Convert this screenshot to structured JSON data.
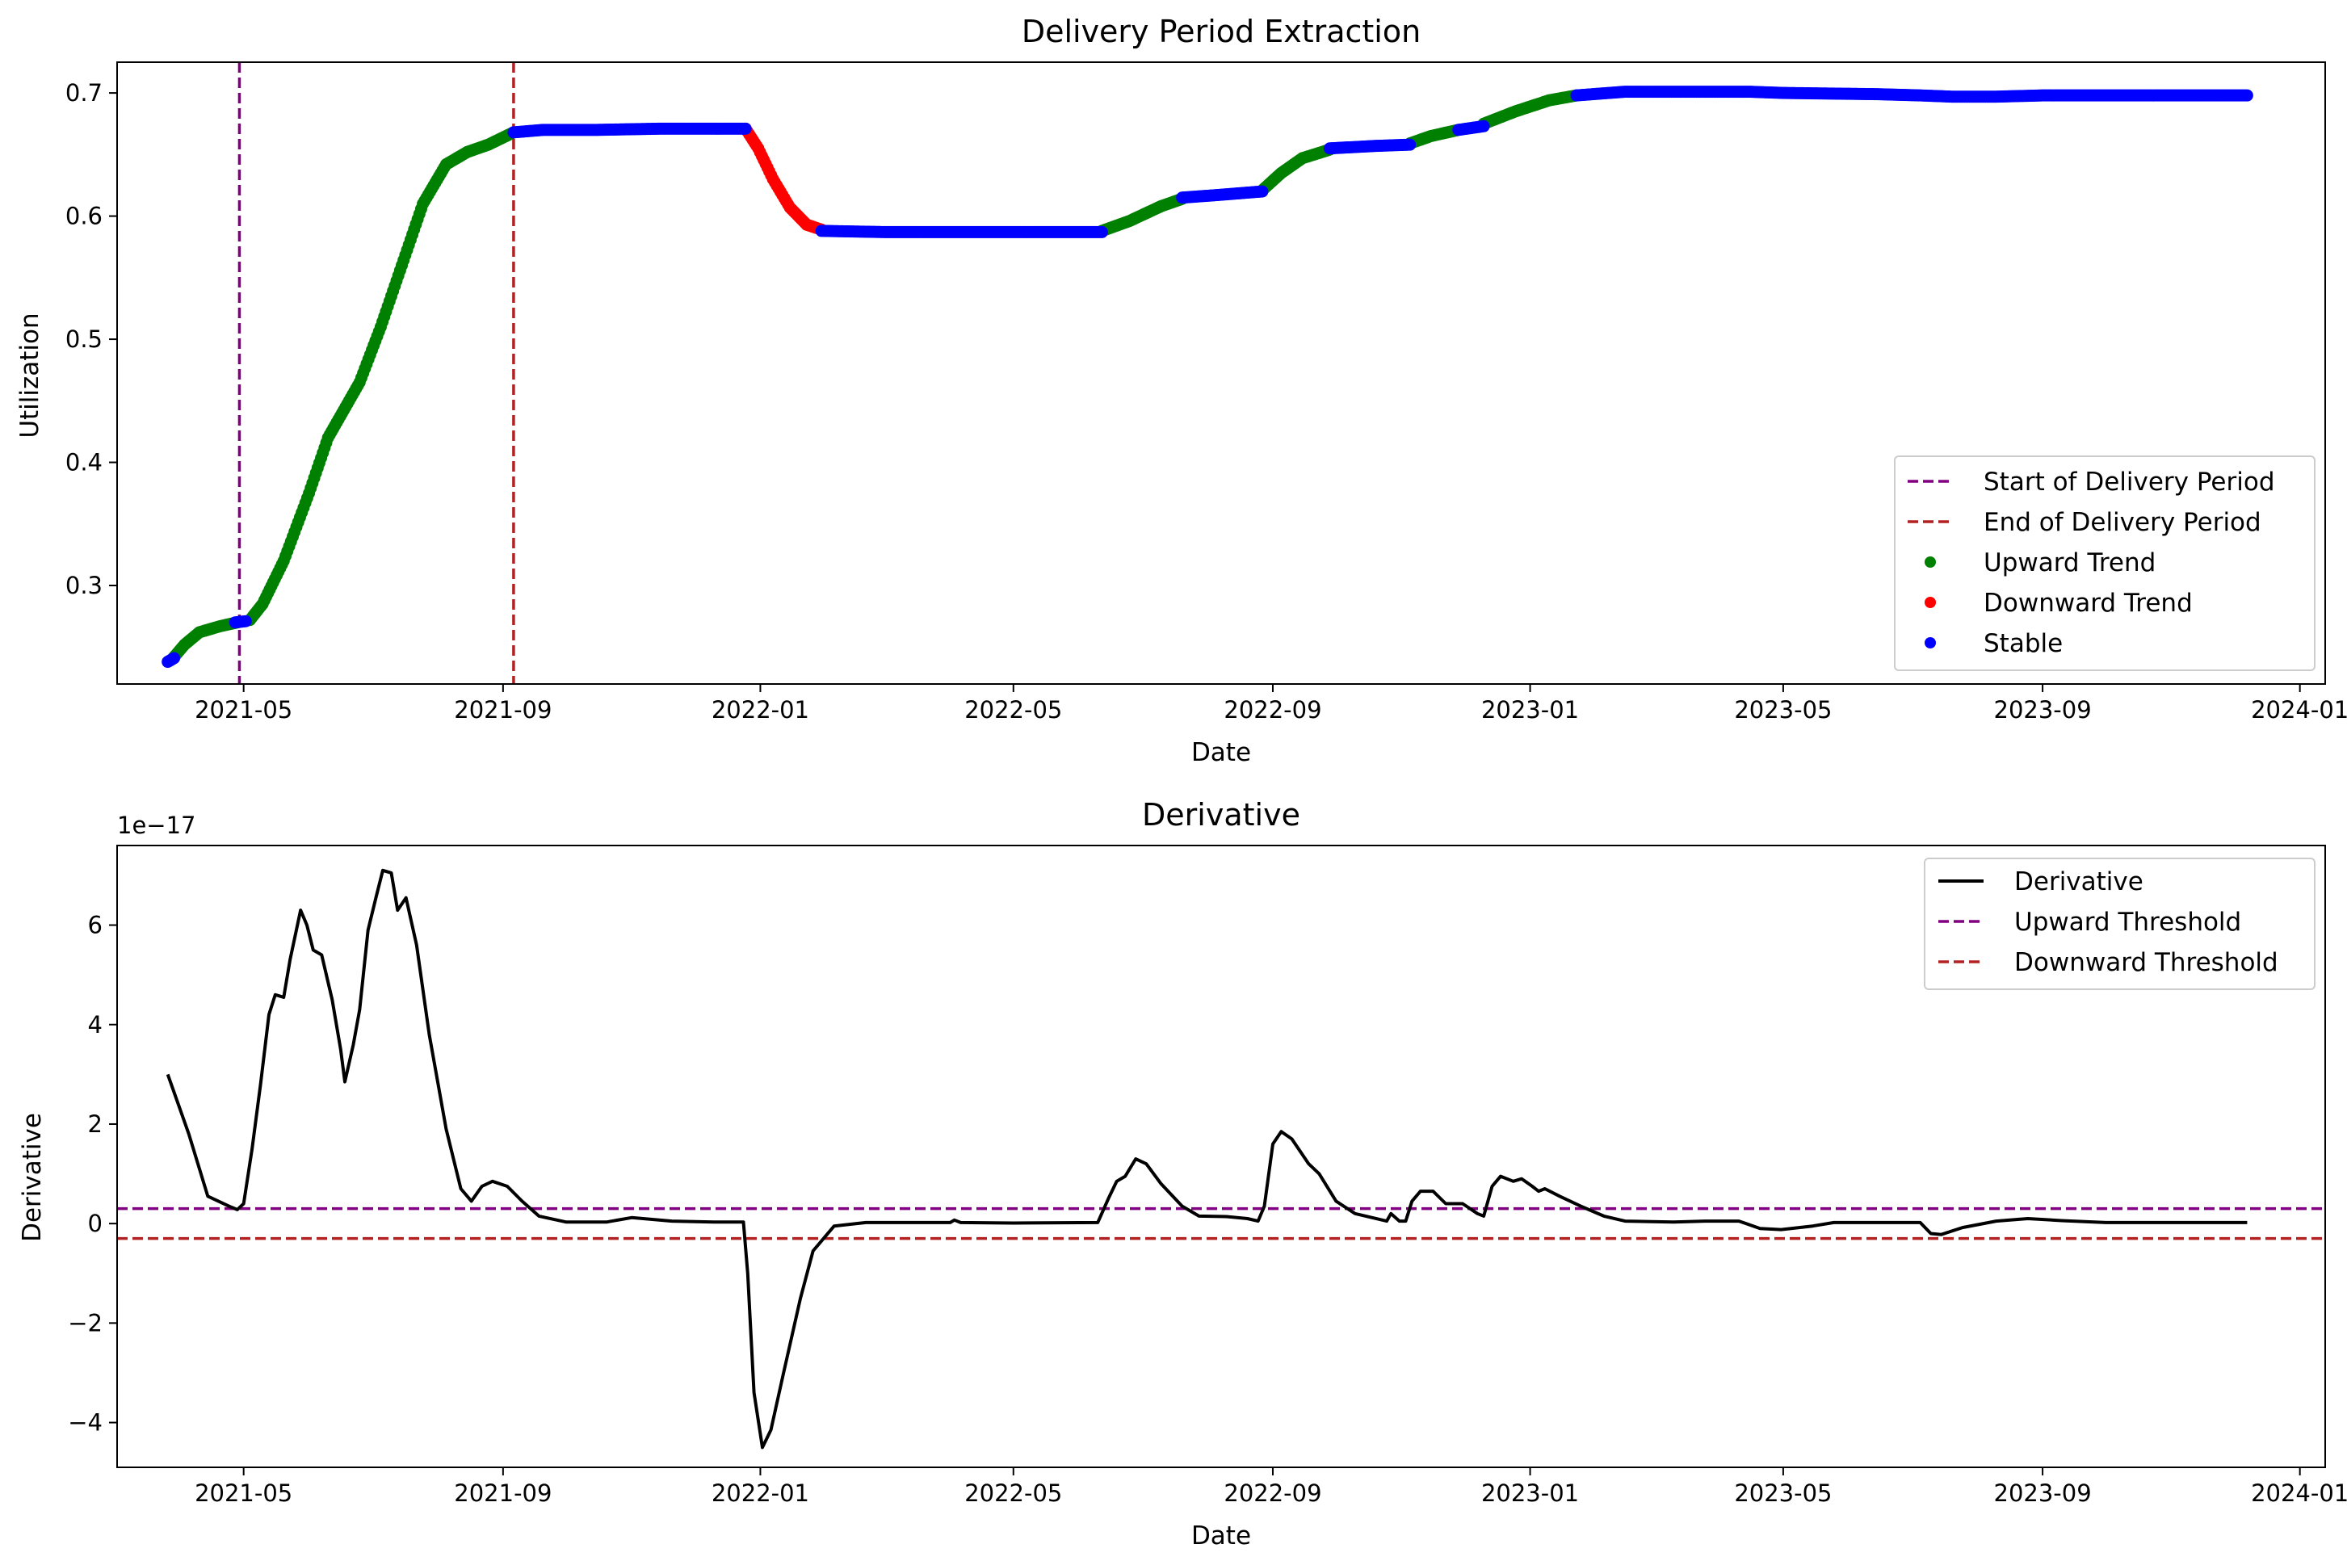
{
  "colors": {
    "upward": "#008000",
    "downward": "#ff0000",
    "stable": "#0000ff",
    "start_line": "#800080",
    "end_line": "#b22222",
    "derivative": "#000000",
    "upward_threshold": "#800080",
    "downward_threshold": "#b22222"
  },
  "chart_data": [
    {
      "type": "scatter",
      "title": "Delivery Period Extraction",
      "xlabel": "Date",
      "ylabel": "Utilization",
      "x_range": [
        "2021-03-02",
        "2024-01-13"
      ],
      "ylim": [
        0.22,
        0.725
      ],
      "x_ticks": [
        "2021-05",
        "2021-09",
        "2022-01",
        "2022-05",
        "2022-09",
        "2023-01",
        "2023-05",
        "2023-09",
        "2024-01"
      ],
      "y_ticks": [
        0.3,
        0.4,
        0.5,
        0.6,
        0.7
      ],
      "y_tick_labels": [
        "0.3",
        "0.4",
        "0.5",
        "0.6",
        "0.7"
      ],
      "grid": false,
      "legend_position": "lower right",
      "vlines": [
        {
          "name": "Start of Delivery Period",
          "x": "2021-04-29",
          "style": "dashed",
          "color": "#800080"
        },
        {
          "name": "End of Delivery Period",
          "x": "2021-09-06",
          "style": "dashed",
          "color": "#b22222"
        }
      ],
      "series": [
        {
          "name": "Upward Trend",
          "color": "#008000",
          "segments": [
            [
              [
                "2021-03-28",
                0.24
              ],
              [
                "2021-04-03",
                0.252
              ],
              [
                "2021-04-10",
                0.262
              ],
              [
                "2021-04-20",
                0.267
              ],
              [
                "2021-04-28",
                0.27
              ]
            ],
            [
              [
                "2021-05-04",
                0.272
              ],
              [
                "2021-05-10",
                0.285
              ],
              [
                "2021-05-20",
                0.32
              ],
              [
                "2021-06-01",
                0.375
              ],
              [
                "2021-06-10",
                0.42
              ],
              [
                "2021-06-20",
                0.45
              ],
              [
                "2021-06-25",
                0.465
              ],
              [
                "2021-07-05",
                0.51
              ],
              [
                "2021-07-15",
                0.56
              ],
              [
                "2021-07-25",
                0.61
              ],
              [
                "2021-08-05",
                0.642
              ],
              [
                "2021-08-15",
                0.652
              ],
              [
                "2021-08-25",
                0.658
              ],
              [
                "2021-09-06",
                0.668
              ]
            ],
            [
              [
                "2022-06-12",
                0.588
              ],
              [
                "2022-06-25",
                0.596
              ],
              [
                "2022-07-10",
                0.608
              ],
              [
                "2022-07-20",
                0.614
              ]
            ],
            [
              [
                "2022-08-27",
                0.621
              ],
              [
                "2022-09-05",
                0.635
              ],
              [
                "2022-09-15",
                0.647
              ],
              [
                "2022-09-28",
                0.654
              ]
            ],
            [
              [
                "2022-11-05",
                0.659
              ],
              [
                "2022-11-15",
                0.665
              ],
              [
                "2022-11-28",
                0.67
              ]
            ],
            [
              [
                "2022-12-10",
                0.675
              ],
              [
                "2022-12-25",
                0.685
              ],
              [
                "2023-01-10",
                0.694
              ],
              [
                "2023-01-23",
                0.698
              ]
            ]
          ]
        },
        {
          "name": "Downward Trend",
          "color": "#ff0000",
          "segments": [
            [
              [
                "2021-12-25",
                0.671
              ],
              [
                "2021-12-31",
                0.655
              ],
              [
                "2022-01-07",
                0.63
              ],
              [
                "2022-01-15",
                0.607
              ],
              [
                "2022-01-23",
                0.593
              ],
              [
                "2022-01-30",
                0.589
              ]
            ]
          ]
        },
        {
          "name": "Stable",
          "color": "#0000ff",
          "segments": [
            [
              [
                "2021-03-26",
                0.238
              ],
              [
                "2021-03-29",
                0.241
              ]
            ],
            [
              [
                "2021-04-27",
                0.27
              ],
              [
                "2021-05-02",
                0.271
              ]
            ],
            [
              [
                "2021-09-06",
                0.668
              ],
              [
                "2021-09-20",
                0.67
              ],
              [
                "2021-10-15",
                0.67
              ],
              [
                "2021-11-15",
                0.671
              ],
              [
                "2021-12-25",
                0.671
              ]
            ],
            [
              [
                "2022-01-30",
                0.588
              ],
              [
                "2022-03-01",
                0.587
              ],
              [
                "2022-04-15",
                0.587
              ],
              [
                "2022-06-12",
                0.587
              ]
            ],
            [
              [
                "2022-07-20",
                0.615
              ],
              [
                "2022-08-05",
                0.617
              ],
              [
                "2022-08-27",
                0.62
              ]
            ],
            [
              [
                "2022-09-28",
                0.655
              ],
              [
                "2022-10-20",
                0.657
              ],
              [
                "2022-11-05",
                0.658
              ]
            ],
            [
              [
                "2022-11-28",
                0.67
              ],
              [
                "2022-12-10",
                0.673
              ]
            ],
            [
              [
                "2023-01-23",
                0.698
              ],
              [
                "2023-02-15",
                0.701
              ],
              [
                "2023-03-15",
                0.701
              ],
              [
                "2023-04-15",
                0.701
              ],
              [
                "2023-05-01",
                0.7
              ],
              [
                "2023-06-15",
                0.699
              ],
              [
                "2023-07-05",
                0.698
              ],
              [
                "2023-07-20",
                0.697
              ],
              [
                "2023-08-10",
                0.697
              ],
              [
                "2023-09-01",
                0.698
              ],
              [
                "2023-10-15",
                0.698
              ],
              [
                "2023-12-01",
                0.698
              ],
              [
                "2023-12-07",
                0.698
              ]
            ]
          ]
        }
      ],
      "legend": [
        "Start of Delivery Period",
        "End of Delivery Period",
        "Upward Trend",
        "Downward Trend",
        "Stable"
      ]
    },
    {
      "type": "line",
      "title": "Derivative",
      "xlabel": "Date",
      "ylabel": "Derivative",
      "y_offset_label": "1e−17",
      "x_range": [
        "2021-03-02",
        "2024-01-13"
      ],
      "ylim": [
        -4.9,
        7.6
      ],
      "x_ticks": [
        "2021-05",
        "2021-09",
        "2022-01",
        "2022-05",
        "2022-09",
        "2023-01",
        "2023-05",
        "2023-09",
        "2024-01"
      ],
      "y_ticks": [
        -4,
        -2,
        0,
        2,
        4,
        6
      ],
      "y_tick_labels": [
        "−4",
        "−2",
        "0",
        "2",
        "4",
        "6"
      ],
      "grid": false,
      "legend_position": "upper right",
      "hlines": [
        {
          "name": "Upward Threshold",
          "y": 0.3,
          "style": "dashed",
          "color": "#800080"
        },
        {
          "name": "Downward Threshold",
          "y": -0.3,
          "style": "dashed",
          "color": "#b22222"
        }
      ],
      "series": [
        {
          "name": "Derivative",
          "color": "#000000",
          "points": [
            [
              "2021-03-26",
              3.0
            ],
            [
              "2021-04-05",
              1.8
            ],
            [
              "2021-04-14",
              0.55
            ],
            [
              "2021-04-24",
              0.35
            ],
            [
              "2021-04-28",
              0.28
            ],
            [
              "2021-05-01",
              0.4
            ],
            [
              "2021-05-05",
              1.5
            ],
            [
              "2021-05-09",
              2.8
            ],
            [
              "2021-05-13",
              4.2
            ],
            [
              "2021-05-16",
              4.6
            ],
            [
              "2021-05-20",
              4.55
            ],
            [
              "2021-05-23",
              5.3
            ],
            [
              "2021-05-28",
              6.3
            ],
            [
              "2021-05-31",
              6.0
            ],
            [
              "2021-06-03",
              5.5
            ],
            [
              "2021-06-07",
              5.4
            ],
            [
              "2021-06-12",
              4.5
            ],
            [
              "2021-06-16",
              3.5
            ],
            [
              "2021-06-18",
              2.85
            ],
            [
              "2021-06-22",
              3.6
            ],
            [
              "2021-06-25",
              4.3
            ],
            [
              "2021-06-29",
              5.9
            ],
            [
              "2021-07-03",
              6.6
            ],
            [
              "2021-07-06",
              7.1
            ],
            [
              "2021-07-10",
              7.05
            ],
            [
              "2021-07-13",
              6.3
            ],
            [
              "2021-07-17",
              6.55
            ],
            [
              "2021-07-22",
              5.6
            ],
            [
              "2021-07-28",
              3.8
            ],
            [
              "2021-08-05",
              1.9
            ],
            [
              "2021-08-12",
              0.7
            ],
            [
              "2021-08-17",
              0.45
            ],
            [
              "2021-08-22",
              0.75
            ],
            [
              "2021-08-27",
              0.85
            ],
            [
              "2021-09-03",
              0.75
            ],
            [
              "2021-09-10",
              0.45
            ],
            [
              "2021-09-18",
              0.15
            ],
            [
              "2021-10-01",
              0.03
            ],
            [
              "2021-10-20",
              0.03
            ],
            [
              "2021-11-01",
              0.12
            ],
            [
              "2021-11-20",
              0.05
            ],
            [
              "2021-12-10",
              0.03
            ],
            [
              "2021-12-24",
              0.03
            ],
            [
              "2021-12-26",
              -1.0
            ],
            [
              "2021-12-29",
              -3.4
            ],
            [
              "2022-01-02",
              -4.5
            ],
            [
              "2022-01-06",
              -4.15
            ],
            [
              "2022-01-12",
              -3.0
            ],
            [
              "2022-01-20",
              -1.5
            ],
            [
              "2022-01-26",
              -0.55
            ],
            [
              "2022-02-05",
              -0.05
            ],
            [
              "2022-02-20",
              0.02
            ],
            [
              "2022-04-01",
              0.02
            ],
            [
              "2022-04-03",
              0.07
            ],
            [
              "2022-04-06",
              0.02
            ],
            [
              "2022-05-01",
              0.01
            ],
            [
              "2022-06-10",
              0.02
            ],
            [
              "2022-06-15",
              0.5
            ],
            [
              "2022-06-19",
              0.85
            ],
            [
              "2022-06-23",
              0.95
            ],
            [
              "2022-06-28",
              1.3
            ],
            [
              "2022-07-03",
              1.2
            ],
            [
              "2022-07-10",
              0.8
            ],
            [
              "2022-07-20",
              0.35
            ],
            [
              "2022-07-28",
              0.15
            ],
            [
              "2022-08-10",
              0.14
            ],
            [
              "2022-08-20",
              0.1
            ],
            [
              "2022-08-25",
              0.05
            ],
            [
              "2022-08-28",
              0.35
            ],
            [
              "2022-09-01",
              1.6
            ],
            [
              "2022-09-05",
              1.85
            ],
            [
              "2022-09-10",
              1.7
            ],
            [
              "2022-09-18",
              1.2
            ],
            [
              "2022-09-23",
              1.0
            ],
            [
              "2022-10-01",
              0.45
            ],
            [
              "2022-10-10",
              0.2
            ],
            [
              "2022-10-25",
              0.05
            ],
            [
              "2022-10-27",
              0.2
            ],
            [
              "2022-10-31",
              0.05
            ],
            [
              "2022-11-03",
              0.05
            ],
            [
              "2022-11-06",
              0.45
            ],
            [
              "2022-11-10",
              0.65
            ],
            [
              "2022-11-16",
              0.65
            ],
            [
              "2022-11-22",
              0.4
            ],
            [
              "2022-11-30",
              0.4
            ],
            [
              "2022-12-07",
              0.2
            ],
            [
              "2022-12-10",
              0.15
            ],
            [
              "2022-12-14",
              0.75
            ],
            [
              "2022-12-18",
              0.95
            ],
            [
              "2022-12-24",
              0.85
            ],
            [
              "2022-12-28",
              0.9
            ],
            [
              "2023-01-02",
              0.75
            ],
            [
              "2023-01-05",
              0.65
            ],
            [
              "2023-01-08",
              0.7
            ],
            [
              "2023-01-15",
              0.55
            ],
            [
              "2023-01-25",
              0.35
            ],
            [
              "2023-02-05",
              0.15
            ],
            [
              "2023-02-15",
              0.05
            ],
            [
              "2023-03-10",
              0.03
            ],
            [
              "2023-03-25",
              0.05
            ],
            [
              "2023-04-10",
              0.05
            ],
            [
              "2023-04-20",
              -0.1
            ],
            [
              "2023-04-30",
              -0.12
            ],
            [
              "2023-05-15",
              -0.05
            ],
            [
              "2023-05-25",
              0.02
            ],
            [
              "2023-06-20",
              0.02
            ],
            [
              "2023-07-05",
              0.02
            ],
            [
              "2023-07-10",
              -0.2
            ],
            [
              "2023-07-15",
              -0.22
            ],
            [
              "2023-07-25",
              -0.08
            ],
            [
              "2023-08-10",
              0.05
            ],
            [
              "2023-08-25",
              0.1
            ],
            [
              "2023-09-10",
              0.06
            ],
            [
              "2023-10-01",
              0.02
            ],
            [
              "2023-11-15",
              0.02
            ],
            [
              "2023-12-07",
              0.02
            ]
          ]
        }
      ],
      "legend": [
        "Derivative",
        "Upward Threshold",
        "Downward Threshold"
      ]
    }
  ]
}
